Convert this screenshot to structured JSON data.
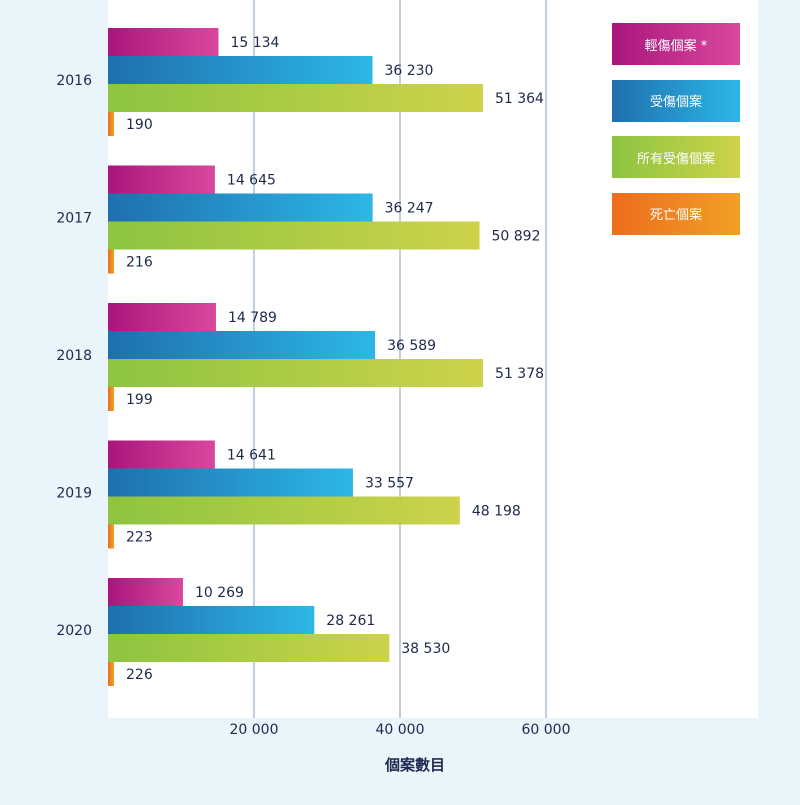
{
  "chart_data": {
    "type": "bar",
    "orientation": "horizontal",
    "categories": [
      "2016",
      "2017",
      "2018",
      "2019",
      "2020"
    ],
    "series": [
      {
        "name": "輕傷個案 *",
        "values": [
          15134,
          14645,
          14789,
          14641,
          10269
        ],
        "color_start": "#a8167c",
        "color_end": "#d9489d"
      },
      {
        "name": "受傷個案",
        "values": [
          36230,
          36247,
          36589,
          33557,
          28261
        ],
        "color_start": "#1f6fae",
        "color_end": "#2cb8e6"
      },
      {
        "name": "所有受傷個案",
        "values": [
          51364,
          50892,
          51378,
          48198,
          38530
        ],
        "color_start": "#8dc440",
        "color_end": "#cdd34a"
      },
      {
        "name": "死亡個案",
        "values": [
          190,
          216,
          199,
          223,
          226
        ],
        "color_start": "#ed6d1f",
        "color_end": "#f2a024"
      }
    ],
    "value_labels": [
      [
        "15 134",
        "14 645",
        "14 789",
        "14 641",
        "10 269"
      ],
      [
        "36 230",
        "36 247",
        "36 589",
        "33 557",
        "28 261"
      ],
      [
        "51 364",
        "50 892",
        "51 378",
        "48 198",
        "38 530"
      ],
      [
        "190",
        "216",
        "199",
        "223",
        "226"
      ]
    ],
    "xlabel": "個案數目",
    "ylabel": "",
    "xlim": [
      0,
      89000
    ],
    "xticks": [
      20000,
      40000,
      60000
    ],
    "xtick_labels": [
      "20 000",
      "40 000",
      "60 000"
    ],
    "grid": true,
    "legend_position": "top-right"
  }
}
